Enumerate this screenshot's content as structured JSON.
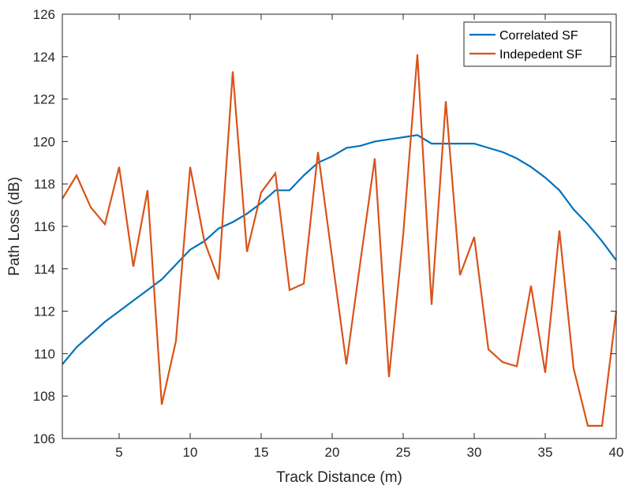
{
  "chart_data": {
    "type": "line",
    "title": "",
    "xlabel": "Track Distance (m)",
    "ylabel": "Path Loss (dB)",
    "xlim": [
      1,
      40
    ],
    "ylim": [
      106,
      126
    ],
    "xticks": [
      5,
      10,
      15,
      20,
      25,
      30,
      35,
      40
    ],
    "yticks": [
      106,
      108,
      110,
      112,
      114,
      116,
      118,
      120,
      122,
      124,
      126
    ],
    "grid": false,
    "legend_position": "top-right",
    "x": [
      1,
      2,
      3,
      4,
      5,
      6,
      7,
      8,
      9,
      10,
      11,
      12,
      13,
      14,
      15,
      16,
      17,
      18,
      19,
      20,
      21,
      22,
      23,
      24,
      25,
      26,
      27,
      28,
      29,
      30,
      31,
      32,
      33,
      34,
      35,
      36,
      37,
      38,
      39,
      40
    ],
    "series": [
      {
        "name": "Correlated SF",
        "color": "#0072BD",
        "values": [
          109.5,
          110.3,
          110.9,
          111.5,
          112.0,
          112.5,
          113.0,
          113.5,
          114.2,
          114.9,
          115.3,
          115.9,
          116.2,
          116.6,
          117.1,
          117.7,
          117.7,
          118.4,
          119.0,
          119.3,
          119.7,
          119.8,
          120.0,
          120.1,
          120.2,
          120.3,
          119.9,
          119.9,
          119.9,
          119.9,
          119.7,
          119.5,
          119.2,
          118.8,
          118.3,
          117.7,
          116.8,
          116.1,
          115.3,
          114.4
        ]
      },
      {
        "name": "Indepedent SF",
        "color": "#D95319",
        "values": [
          117.3,
          118.4,
          116.9,
          116.1,
          118.8,
          114.1,
          117.7,
          107.6,
          110.6,
          118.8,
          115.3,
          113.5,
          123.3,
          114.8,
          117.6,
          118.5,
          113.0,
          113.3,
          119.5,
          114.5,
          109.5,
          114.4,
          119.2,
          108.9,
          115.6,
          124.1,
          112.3,
          121.9,
          113.7,
          115.5,
          110.2,
          109.6,
          109.4,
          113.2,
          109.1,
          115.8,
          109.3,
          106.6,
          106.6,
          112.0
        ]
      }
    ]
  }
}
